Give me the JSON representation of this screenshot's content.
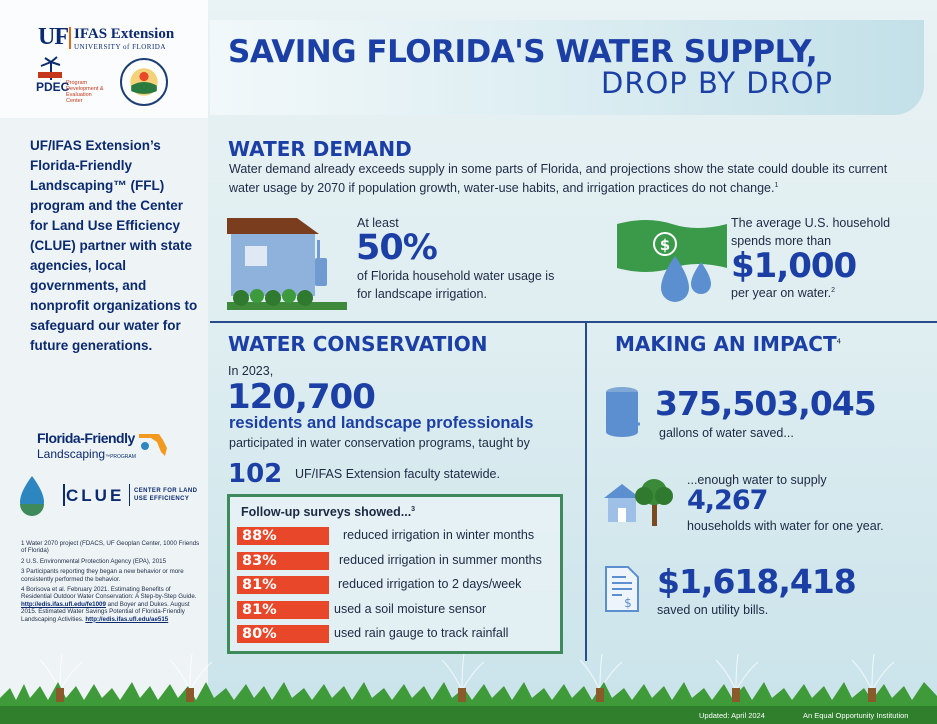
{
  "logos": {
    "uf_mark": "UF",
    "ifas_extension": "IFAS Extension",
    "university": "UNIVERSITY of FLORIDA",
    "pdec": "PDEC",
    "pdec_full": "Program Development & Evaluation Center",
    "ffl_line1": "Florida-Friendly",
    "ffl_line2": "Landscaping",
    "ffl_program": "PROGRAM",
    "clue": "CLUE",
    "clue_tag_1": "CENTER FOR LAND",
    "clue_tag_2": "USE EFFICIENCY"
  },
  "header": {
    "title_line1": "SAVING FLORIDA'S WATER SUPPLY,",
    "title_line2": "DROP BY DROP"
  },
  "sidebar": {
    "intro": "UF/IFAS Extension’s Florida-Friendly Landscaping™ (FFL) program and the Center for Land Use Efficiency (CLUE) partner with state agencies, local governments, and nonprofit organizations to safeguard our water for future generations.",
    "footnotes": [
      {
        "text": "1 Water 2070 project (FDACS, UF Geoplan Center, 1000  Friends of Florida)"
      },
      {
        "text": "2 U.S. Environmental Protection Agency (EPA), 2015"
      },
      {
        "text": "3 Participants reporting they began a new behavior or more consistently performed the behavior."
      },
      {
        "text": "4 Borisova et al. February 2021. Estimating Benefits of Residential Outdoor Water Conservation: A Step-by-Step Guide.",
        "link1": "http://edis.ifas.ufl.edu/fe1009",
        "mid": "and Boyer and Dukes. August 2015. Estimated Water Savings Potential of Florida-Friendly Landscaping Activities.",
        "link2": "http://edis.ifas.ufl.edu/ae515"
      }
    ]
  },
  "demand": {
    "heading": "WATER DEMAND",
    "intro": "Water demand already exceeds supply in some parts of Florida, and projections show the state could double its current water usage by 2070 if population growth, water-use habits, and irrigation practices do not change.",
    "intro_sup": "1",
    "stat1_pre": "At least",
    "stat1_value": "50%",
    "stat1_post": "of Florida household water usage is for landscape irrigation.",
    "stat2_pre": "The average U.S. household spends more than",
    "stat2_value": "$1,000",
    "stat2_post": "per year on water.",
    "stat2_sup": "2"
  },
  "conservation": {
    "heading": "WATER CONSERVATION",
    "in_year": "In 2023,",
    "count": "120,700",
    "residents": "residents and landscape professionals",
    "participated": "participated in water conservation programs, taught by",
    "faculty_count": "102",
    "faculty_text": "UF/IFAS Extension faculty statewide.",
    "survey_title": "Follow-up surveys showed...",
    "survey_sup": "3",
    "survey_rows": [
      {
        "pct": "88%",
        "value": 88,
        "label": "reduced irrigation in winter months"
      },
      {
        "pct": "83%",
        "value": 83,
        "label": "reduced irrigation in summer months"
      },
      {
        "pct": "81%",
        "value": 81,
        "label": "reduced irrigation to 2 days/week"
      },
      {
        "pct": "81%",
        "value": 81,
        "label": "used a soil moisture sensor"
      },
      {
        "pct": "80%",
        "value": 80,
        "label": "used rain gauge to track rainfall"
      }
    ]
  },
  "impact": {
    "heading": "MAKING AN IMPACT",
    "heading_sup": "4",
    "gallons": "375,503,045",
    "gallons_label": "gallons of water saved...",
    "enough": "...enough water to supply",
    "households": "4,267",
    "households_label": "households with water for one year.",
    "dollars": "$1,618,418",
    "dollars_label": "saved on utility bills."
  },
  "footer": {
    "updated": "Updated: April 2024",
    "equal": "An Equal Opportunity Institution"
  },
  "colors": {
    "brand_blue": "#1b3fa5",
    "accent_orange": "#e8472a",
    "survey_border": "#3f8a5a"
  }
}
